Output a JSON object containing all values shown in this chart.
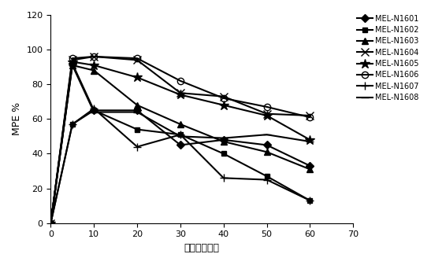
{
  "x": [
    0,
    5,
    10,
    20,
    30,
    40,
    50,
    60
  ],
  "series": {
    "MEL-N1601": [
      0,
      92,
      65,
      65,
      45,
      48,
      45,
      33
    ],
    "MEL-N1602": [
      0,
      57,
      65,
      54,
      51,
      40,
      27,
      13
    ],
    "MEL-N1603": [
      0,
      91,
      88,
      68,
      57,
      47,
      41,
      31
    ],
    "MEL-N1604": [
      0,
      94,
      96,
      94,
      75,
      73,
      63,
      62
    ],
    "MEL-N1605": [
      0,
      93,
      91,
      84,
      74,
      68,
      62,
      48
    ],
    "MEL-N1606": [
      0,
      95,
      96,
      95,
      82,
      72,
      67,
      61
    ],
    "MEL-N1607": [
      0,
      57,
      66,
      44,
      51,
      26,
      25,
      13
    ],
    "MEL-N1608": [
      0,
      91,
      64,
      64,
      50,
      49,
      51,
      47
    ]
  },
  "xlabel": "时间（分钟）",
  "ylabel": "MPE %",
  "xlim": [
    0,
    70
  ],
  "ylim": [
    0,
    120
  ],
  "yticks": [
    0,
    20,
    40,
    60,
    80,
    100,
    120
  ],
  "xticks": [
    0,
    10,
    20,
    30,
    40,
    50,
    60,
    70
  ],
  "figsize": [
    5.47,
    3.37
  ],
  "dpi": 100
}
